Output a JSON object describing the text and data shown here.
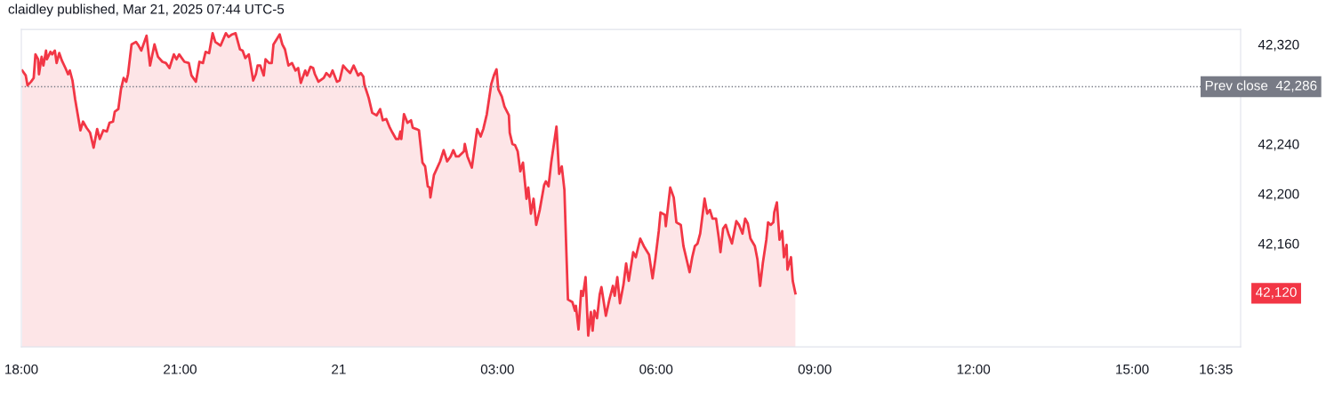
{
  "chart_data": {
    "type": "area",
    "title": "claidley published, Mar 21, 2025 07:44 UTC-5",
    "series": [
      {
        "color": "#f23645",
        "line_style": "solid",
        "x": [
          "2025-03-20T18:01",
          "2025-03-20T18:05",
          "2025-03-20T18:07",
          "2025-03-20T18:11",
          "2025-03-20T18:14",
          "2025-03-20T18:16",
          "2025-03-20T18:19",
          "2025-03-20T18:20",
          "2025-03-20T18:23",
          "2025-03-20T18:25",
          "2025-03-20T18:28",
          "2025-03-20T18:29",
          "2025-03-20T18:33",
          "2025-03-20T18:35",
          "2025-03-20T18:38",
          "2025-03-20T18:40",
          "2025-03-20T18:43",
          "2025-03-20T18:46",
          "2025-03-20T18:50",
          "2025-03-20T18:53",
          "2025-03-20T18:55",
          "2025-03-20T18:58",
          "2025-03-20T19:01",
          "2025-03-20T19:07",
          "2025-03-20T19:10",
          "2025-03-20T19:14",
          "2025-03-20T19:18",
          "2025-03-20T19:22",
          "2025-03-20T19:26",
          "2025-03-20T19:29",
          "2025-03-20T19:33",
          "2025-03-20T19:37",
          "2025-03-20T19:40",
          "2025-03-20T19:44",
          "2025-03-20T19:46",
          "2025-03-20T19:50",
          "2025-03-20T19:53",
          "2025-03-20T19:56",
          "2025-03-20T19:59",
          "2025-03-20T20:01",
          "2025-03-20T20:05",
          "2025-03-20T20:10",
          "2025-03-20T20:13",
          "2025-03-20T20:16",
          "2025-03-20T20:22",
          "2025-03-20T20:26",
          "2025-03-20T20:31",
          "2025-03-20T20:35",
          "2025-03-20T20:40",
          "2025-03-20T20:44",
          "2025-03-20T20:48",
          "2025-03-20T20:53",
          "2025-03-20T20:56",
          "2025-03-20T20:59",
          "2025-03-20T21:05",
          "2025-03-20T21:10",
          "2025-03-20T21:13",
          "2025-03-20T21:18",
          "2025-03-20T21:22",
          "2025-03-20T21:26",
          "2025-03-20T21:29",
          "2025-03-20T21:33",
          "2025-03-20T21:37",
          "2025-03-20T21:40",
          "2025-03-20T21:46",
          "2025-03-20T21:52",
          "2025-03-20T21:55",
          "2025-03-20T21:59",
          "2025-03-20T22:03",
          "2025-03-20T22:08",
          "2025-03-20T22:11",
          "2025-03-20T22:14",
          "2025-03-20T22:18",
          "2025-03-20T22:23",
          "2025-03-20T22:26",
          "2025-03-20T22:28",
          "2025-03-20T22:31",
          "2025-03-20T22:35",
          "2025-03-20T22:37",
          "2025-03-20T22:41",
          "2025-03-20T22:44",
          "2025-03-20T22:46",
          "2025-03-20T22:53",
          "2025-03-20T22:56",
          "2025-03-20T22:59",
          "2025-03-20T23:03",
          "2025-03-20T23:07",
          "2025-03-20T23:11",
          "2025-03-20T23:14",
          "2025-03-20T23:17",
          "2025-03-20T23:22",
          "2025-03-20T23:24",
          "2025-03-20T23:28",
          "2025-03-20T23:31",
          "2025-03-20T23:33",
          "2025-03-20T23:37",
          "2025-03-20T23:43",
          "2025-03-20T23:46",
          "2025-03-20T23:50",
          "2025-03-20T23:53",
          "2025-03-20T23:58",
          "2025-03-21T00:01",
          "2025-03-21T00:05",
          "2025-03-21T00:10",
          "2025-03-21T00:13",
          "2025-03-21T00:17",
          "2025-03-21T00:22",
          "2025-03-21T00:25",
          "2025-03-21T00:28",
          "2025-03-21T00:29",
          "2025-03-21T00:34",
          "2025-03-21T00:38",
          "2025-03-21T00:43",
          "2025-03-21T00:47",
          "2025-03-21T00:50",
          "2025-03-21T00:54",
          "2025-03-21T00:58",
          "2025-03-21T01:01",
          "2025-03-21T01:05",
          "2025-03-21T01:08",
          "2025-03-21T01:10",
          "2025-03-21T01:11",
          "2025-03-21T01:14",
          "2025-03-21T01:18",
          "2025-03-21T01:22",
          "2025-03-21T01:24",
          "2025-03-21T01:28",
          "2025-03-21T01:31",
          "2025-03-21T01:35",
          "2025-03-21T01:38",
          "2025-03-21T01:41",
          "2025-03-21T01:43",
          "2025-03-21T01:44",
          "2025-03-21T01:48",
          "2025-03-21T01:55",
          "2025-03-21T01:59",
          "2025-03-21T02:03",
          "2025-03-21T02:07",
          "2025-03-21T02:10",
          "2025-03-21T02:13",
          "2025-03-21T02:16",
          "2025-03-21T02:22",
          "2025-03-21T02:23",
          "2025-03-21T02:26",
          "2025-03-21T02:31",
          "2025-03-21T02:37",
          "2025-03-21T02:41",
          "2025-03-21T02:44",
          "2025-03-21T02:48",
          "2025-03-21T02:53",
          "2025-03-21T02:56",
          "2025-03-21T02:59",
          "2025-03-21T03:01",
          "2025-03-21T03:05",
          "2025-03-21T03:08",
          "2025-03-21T03:13",
          "2025-03-21T03:14",
          "2025-03-21T03:17",
          "2025-03-21T03:20",
          "2025-03-21T03:23",
          "2025-03-21T03:26",
          "2025-03-21T03:29",
          "2025-03-21T03:33",
          "2025-03-21T03:35",
          "2025-03-21T03:38",
          "2025-03-21T03:41",
          "2025-03-21T03:44",
          "2025-03-21T03:48",
          "2025-03-21T03:53",
          "2025-03-21T03:55",
          "2025-03-21T03:58",
          "2025-03-21T04:01",
          "2025-03-21T04:07",
          "2025-03-21T04:10",
          "2025-03-21T04:13",
          "2025-03-21T04:16",
          "2025-03-21T04:18",
          "2025-03-21T04:20",
          "2025-03-21T04:25",
          "2025-03-21T04:28",
          "2025-03-21T04:29",
          "2025-03-21T04:32",
          "2025-03-21T04:35",
          "2025-03-21T04:37",
          "2025-03-21T04:40",
          "2025-03-21T04:43",
          "2025-03-21T04:46",
          "2025-03-21T04:48",
          "2025-03-21T04:50",
          "2025-03-21T04:53",
          "2025-03-21T04:56",
          "2025-03-21T04:58",
          "2025-03-21T05:03",
          "2025-03-21T05:07",
          "2025-03-21T05:11",
          "2025-03-21T05:13",
          "2025-03-21T05:16",
          "2025-03-21T05:19",
          "2025-03-21T05:23",
          "2025-03-21T05:26",
          "2025-03-21T05:29",
          "2025-03-21T05:34",
          "2025-03-21T05:37",
          "2025-03-21T05:42",
          "2025-03-21T05:46",
          "2025-03-21T05:52",
          "2025-03-21T05:56",
          "2025-03-21T05:59",
          "2025-03-21T06:03",
          "2025-03-21T06:05",
          "2025-03-21T06:10",
          "2025-03-21T06:11",
          "2025-03-21T06:16",
          "2025-03-21T06:20",
          "2025-03-21T06:23",
          "2025-03-21T06:28",
          "2025-03-21T06:31",
          "2025-03-21T06:35",
          "2025-03-21T06:38",
          "2025-03-21T06:41",
          "2025-03-21T06:44",
          "2025-03-21T06:47",
          "2025-03-21T06:50",
          "2025-03-21T06:55",
          "2025-03-21T06:58",
          "2025-03-21T07:01",
          "2025-03-21T07:04",
          "2025-03-21T07:08",
          "2025-03-21T07:11",
          "2025-03-21T07:13",
          "2025-03-21T07:16",
          "2025-03-21T07:19",
          "2025-03-21T07:22",
          "2025-03-21T07:26",
          "2025-03-21T07:31",
          "2025-03-21T07:34",
          "2025-03-21T07:38",
          "2025-03-21T07:41",
          "2025-03-21T07:44",
          "2025-03-21T07:47",
          "2025-03-21T07:52",
          "2025-03-21T07:55",
          "2025-03-21T07:58",
          "2025-03-21T08:01",
          "2025-03-21T08:05",
          "2025-03-21T08:07",
          "2025-03-21T08:10",
          "2025-03-21T08:13",
          "2025-03-21T08:14",
          "2025-03-21T08:17",
          "2025-03-21T08:20",
          "2025-03-21T08:23",
          "2025-03-21T08:25",
          "2025-03-21T08:28",
          "2025-03-21T08:29",
          "2025-03-21T08:33",
          "2025-03-21T08:35",
          "2025-03-21T08:38"
        ],
        "values": [
          42299,
          42295,
          42287,
          42290,
          42293,
          42312,
          42308,
          42296,
          42310,
          42303,
          42315,
          42308,
          42314,
          42312,
          42315,
          42305,
          42313,
          42307,
          42301,
          42296,
          42299,
          42291,
          42276,
          42251,
          42258,
          42253,
          42249,
          42237,
          42252,
          42244,
          42251,
          42250,
          42257,
          42258,
          42266,
          42268,
          42284,
          42293,
          42290,
          42296,
          42320,
          42322,
          42319,
          42315,
          42327,
          42303,
          42320,
          42310,
          42306,
          42305,
          42301,
          42312,
          42308,
          42312,
          42306,
          42305,
          42295,
          42290,
          42306,
          42305,
          42314,
          42313,
          42329,
          42322,
          42319,
          42329,
          42326,
          42328,
          42329,
          42316,
          42315,
          42309,
          42312,
          42291,
          42296,
          42303,
          42303,
          42295,
          42308,
          42305,
          42305,
          42320,
          42328,
          42320,
          42316,
          42303,
          42305,
          42299,
          42301,
          42289,
          42299,
          42295,
          42302,
          42301,
          42296,
          42290,
          42293,
          42297,
          42294,
          42299,
          42290,
          42291,
          42303,
          42299,
          42297,
          42303,
          42295,
          42297,
          42294,
          42288,
          42277,
          42265,
          42263,
          42268,
          42259,
          42260,
          42253,
          42249,
          42244,
          42244,
          42250,
          42244,
          42264,
          42257,
          42259,
          42253,
          42252,
          42251,
          42225,
          42222,
          42206,
          42205,
          42197,
          42215,
          42226,
          42235,
          42226,
          42230,
          42235,
          42230,
          42230,
          42234,
          42240,
          42230,
          42221,
          42252,
          42246,
          42252,
          42264,
          42288,
          42295,
          42300,
          42284,
          42278,
          42270,
          42263,
          42249,
          42240,
          42239,
          42234,
          42218,
          42225,
          42196,
          42205,
          42184,
          42196,
          42175,
          42187,
          42207,
          42210,
          42206,
          42225,
          42254,
          42216,
          42222,
          42203,
          42158,
          42115,
          42113,
          42106,
          42110,
          42091,
          42122,
          42118,
          42133,
          42086,
          42105,
          42090,
          42106,
          42100,
          42119,
          42125,
          42102,
          42115,
          42126,
          42118,
          42133,
          42112,
          42127,
          42144,
          42130,
          42153,
          42149,
          42164,
          42158,
          42151,
          42132,
          42147,
          42170,
          42185,
          42183,
          42174,
          42205,
          42197,
          42177,
          42175,
          42158,
          42146,
          42137,
          42149,
          42158,
          42160,
          42168,
          42196,
          42184,
          42187,
          42180,
          42180,
          42165,
          42153,
          42172,
          42175,
          42168,
          42160,
          42178,
          42175,
          42168,
          42180,
          42176,
          42164,
          42158,
          42147,
          42126,
          42144,
          42163,
          42177,
          42175,
          42177,
          42185,
          42193,
          42163,
          42170,
          42149,
          42159,
          42139,
          42149,
          42130,
          42120
        ]
      }
    ],
    "xlim": [
      "2025-03-20T18:00",
      "2025-03-21T17:03"
    ],
    "xticks": [
      {
        "value": "2025-03-20T18:00",
        "label": "18:00"
      },
      {
        "value": "2025-03-20T21:00",
        "label": "21:00"
      },
      {
        "value": "2025-03-21T00:00",
        "label": "21"
      },
      {
        "value": "2025-03-21T03:00",
        "label": "03:00"
      },
      {
        "value": "2025-03-21T06:00",
        "label": "06:00"
      },
      {
        "value": "2025-03-21T09:00",
        "label": "09:00"
      },
      {
        "value": "2025-03-21T12:00",
        "label": "12:00"
      },
      {
        "value": "2025-03-21T15:00",
        "label": "15:00"
      },
      {
        "value": "2025-03-21T16:35",
        "label": "16:35"
      }
    ],
    "ylim": [
      42077,
      42332
    ],
    "yticks": [
      {
        "value": 42160,
        "label": "42,160"
      },
      {
        "value": 42200,
        "label": "42,200"
      },
      {
        "value": 42240,
        "label": "42,240"
      },
      {
        "value": 42320,
        "label": "42,320"
      }
    ],
    "ref_lines": [
      {
        "axis": "y",
        "value": 42286,
        "label": "Prev close  42,286",
        "color": "#787b86",
        "line_style": "dotted"
      }
    ],
    "annotations": [
      "42,120"
    ]
  }
}
